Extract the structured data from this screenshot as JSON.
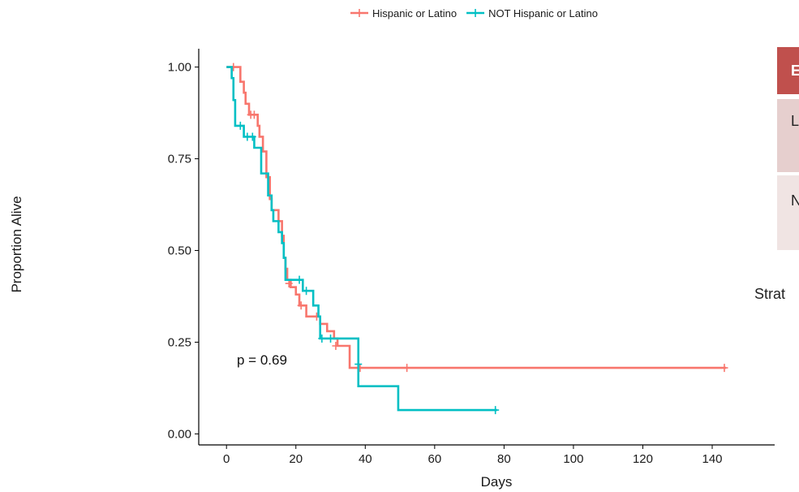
{
  "chart_data": {
    "type": "line",
    "subtype": "kaplan-meier step",
    "xlabel": "Days",
    "ylabel": "Proportion Alive",
    "xlim": [
      -8,
      158
    ],
    "ylim": [
      -0.03,
      1.05
    ],
    "xticks": [
      0,
      20,
      40,
      60,
      80,
      100,
      120,
      140
    ],
    "yticks": [
      0.0,
      0.25,
      0.5,
      0.75,
      1.0
    ],
    "ytick_labels": [
      "0.00",
      "0.25",
      "0.50",
      "0.75",
      "1.00"
    ],
    "grid": false,
    "legend_position": "top",
    "annotation": "p = 0.69",
    "series": [
      {
        "name": "Hispanic or Latino",
        "color": "#F8766D",
        "steps": [
          [
            0,
            1.0
          ],
          [
            4,
            0.96
          ],
          [
            5,
            0.93
          ],
          [
            5.5,
            0.9
          ],
          [
            6.5,
            0.87
          ],
          [
            9,
            0.84
          ],
          [
            9.5,
            0.81
          ],
          [
            10.5,
            0.77
          ],
          [
            11.5,
            0.7
          ],
          [
            12.5,
            0.64
          ],
          [
            13,
            0.61
          ],
          [
            15,
            0.58
          ],
          [
            16,
            0.54
          ],
          [
            16.5,
            0.48
          ],
          [
            17,
            0.45
          ],
          [
            17.5,
            0.42
          ],
          [
            18.5,
            0.4
          ],
          [
            20,
            0.38
          ],
          [
            21,
            0.35
          ],
          [
            23,
            0.32
          ],
          [
            27,
            0.3
          ],
          [
            29,
            0.28
          ],
          [
            31,
            0.26
          ],
          [
            32,
            0.24
          ],
          [
            35.5,
            0.18
          ],
          [
            144,
            0.18
          ]
        ],
        "censored": [
          [
            2,
            1.0
          ],
          [
            7,
            0.87
          ],
          [
            8,
            0.87
          ],
          [
            18,
            0.41
          ],
          [
            21.5,
            0.35
          ],
          [
            26,
            0.32
          ],
          [
            31.5,
            0.24
          ],
          [
            38.5,
            0.18
          ],
          [
            52,
            0.18
          ],
          [
            143.5,
            0.18
          ]
        ]
      },
      {
        "name": "NOT Hispanic or Latino",
        "color": "#00BFC4",
        "steps": [
          [
            0,
            1.0
          ],
          [
            1.5,
            0.97
          ],
          [
            2,
            0.91
          ],
          [
            2.5,
            0.84
          ],
          [
            5,
            0.81
          ],
          [
            8,
            0.78
          ],
          [
            10,
            0.71
          ],
          [
            12,
            0.65
          ],
          [
            13,
            0.61
          ],
          [
            13.5,
            0.58
          ],
          [
            15,
            0.55
          ],
          [
            16,
            0.52
          ],
          [
            16.5,
            0.48
          ],
          [
            17,
            0.42
          ],
          [
            22,
            0.39
          ],
          [
            25,
            0.35
          ],
          [
            26.5,
            0.32
          ],
          [
            27,
            0.26
          ],
          [
            38,
            0.13
          ],
          [
            49.5,
            0.065
          ],
          [
            78,
            0.065
          ]
        ],
        "censored": [
          [
            4,
            0.84
          ],
          [
            6,
            0.81
          ],
          [
            7.5,
            0.81
          ],
          [
            21,
            0.42
          ],
          [
            23,
            0.39
          ],
          [
            27.5,
            0.26
          ],
          [
            30,
            0.26
          ],
          [
            38,
            0.19
          ],
          [
            77.5,
            0.065
          ]
        ]
      }
    ]
  },
  "overlay": {
    "table_header_letter": "E",
    "row1_letter": "L",
    "row2_letter": "N",
    "strata_text": "Strat",
    "header_color": "#C0504D",
    "row1_color": "#E6CFCE",
    "row2_color": "#F0E4E3"
  }
}
